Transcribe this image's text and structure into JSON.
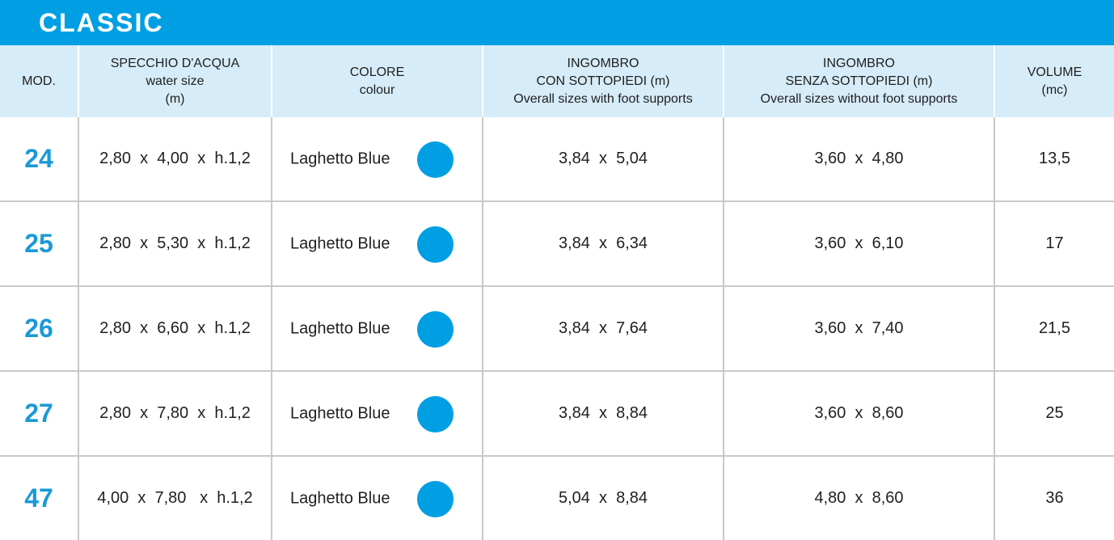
{
  "title": "CLASSIC",
  "columns": [
    [
      "MOD."
    ],
    [
      "SPECCHIO D'ACQUA",
      "water size",
      "(m)"
    ],
    [
      "COLORE",
      "colour"
    ],
    [
      "INGOMBRO",
      "CON SOTTOPIEDI (m)",
      "Overall sizes with foot supports"
    ],
    [
      "INGOMBRO",
      "SENZA SOTTOPIEDI (m)",
      "Overall sizes without foot supports"
    ],
    [
      "VOLUME",
      "(mc)"
    ]
  ],
  "swatch_color": "#009fe3",
  "rows": [
    {
      "mod": "24",
      "water_size": "2,80  x  4,00  x  h.1,2",
      "colour": "Laghetto Blue",
      "with_supports": "3,84  x  5,04",
      "without_supports": "3,60  x  4,80",
      "volume": "13,5"
    },
    {
      "mod": "25",
      "water_size": "2,80  x  5,30  x  h.1,2",
      "colour": "Laghetto Blue",
      "with_supports": "3,84  x  6,34",
      "without_supports": "3,60  x  6,10",
      "volume": "17"
    },
    {
      "mod": "26",
      "water_size": "2,80  x  6,60  x  h.1,2",
      "colour": "Laghetto Blue",
      "with_supports": "3,84  x  7,64",
      "without_supports": "3,60  x  7,40",
      "volume": "21,5"
    },
    {
      "mod": "27",
      "water_size": "2,80  x  7,80  x  h.1,2",
      "colour": "Laghetto Blue",
      "with_supports": "3,84  x  8,84",
      "without_supports": "3,60  x  8,60",
      "volume": "25"
    },
    {
      "mod": "47",
      "water_size": "4,00  x  7,80   x  h.1,2",
      "colour": "Laghetto Blue",
      "with_supports": "5,04  x  8,84",
      "without_supports": "4,80  x  8,60",
      "volume": "36"
    }
  ]
}
